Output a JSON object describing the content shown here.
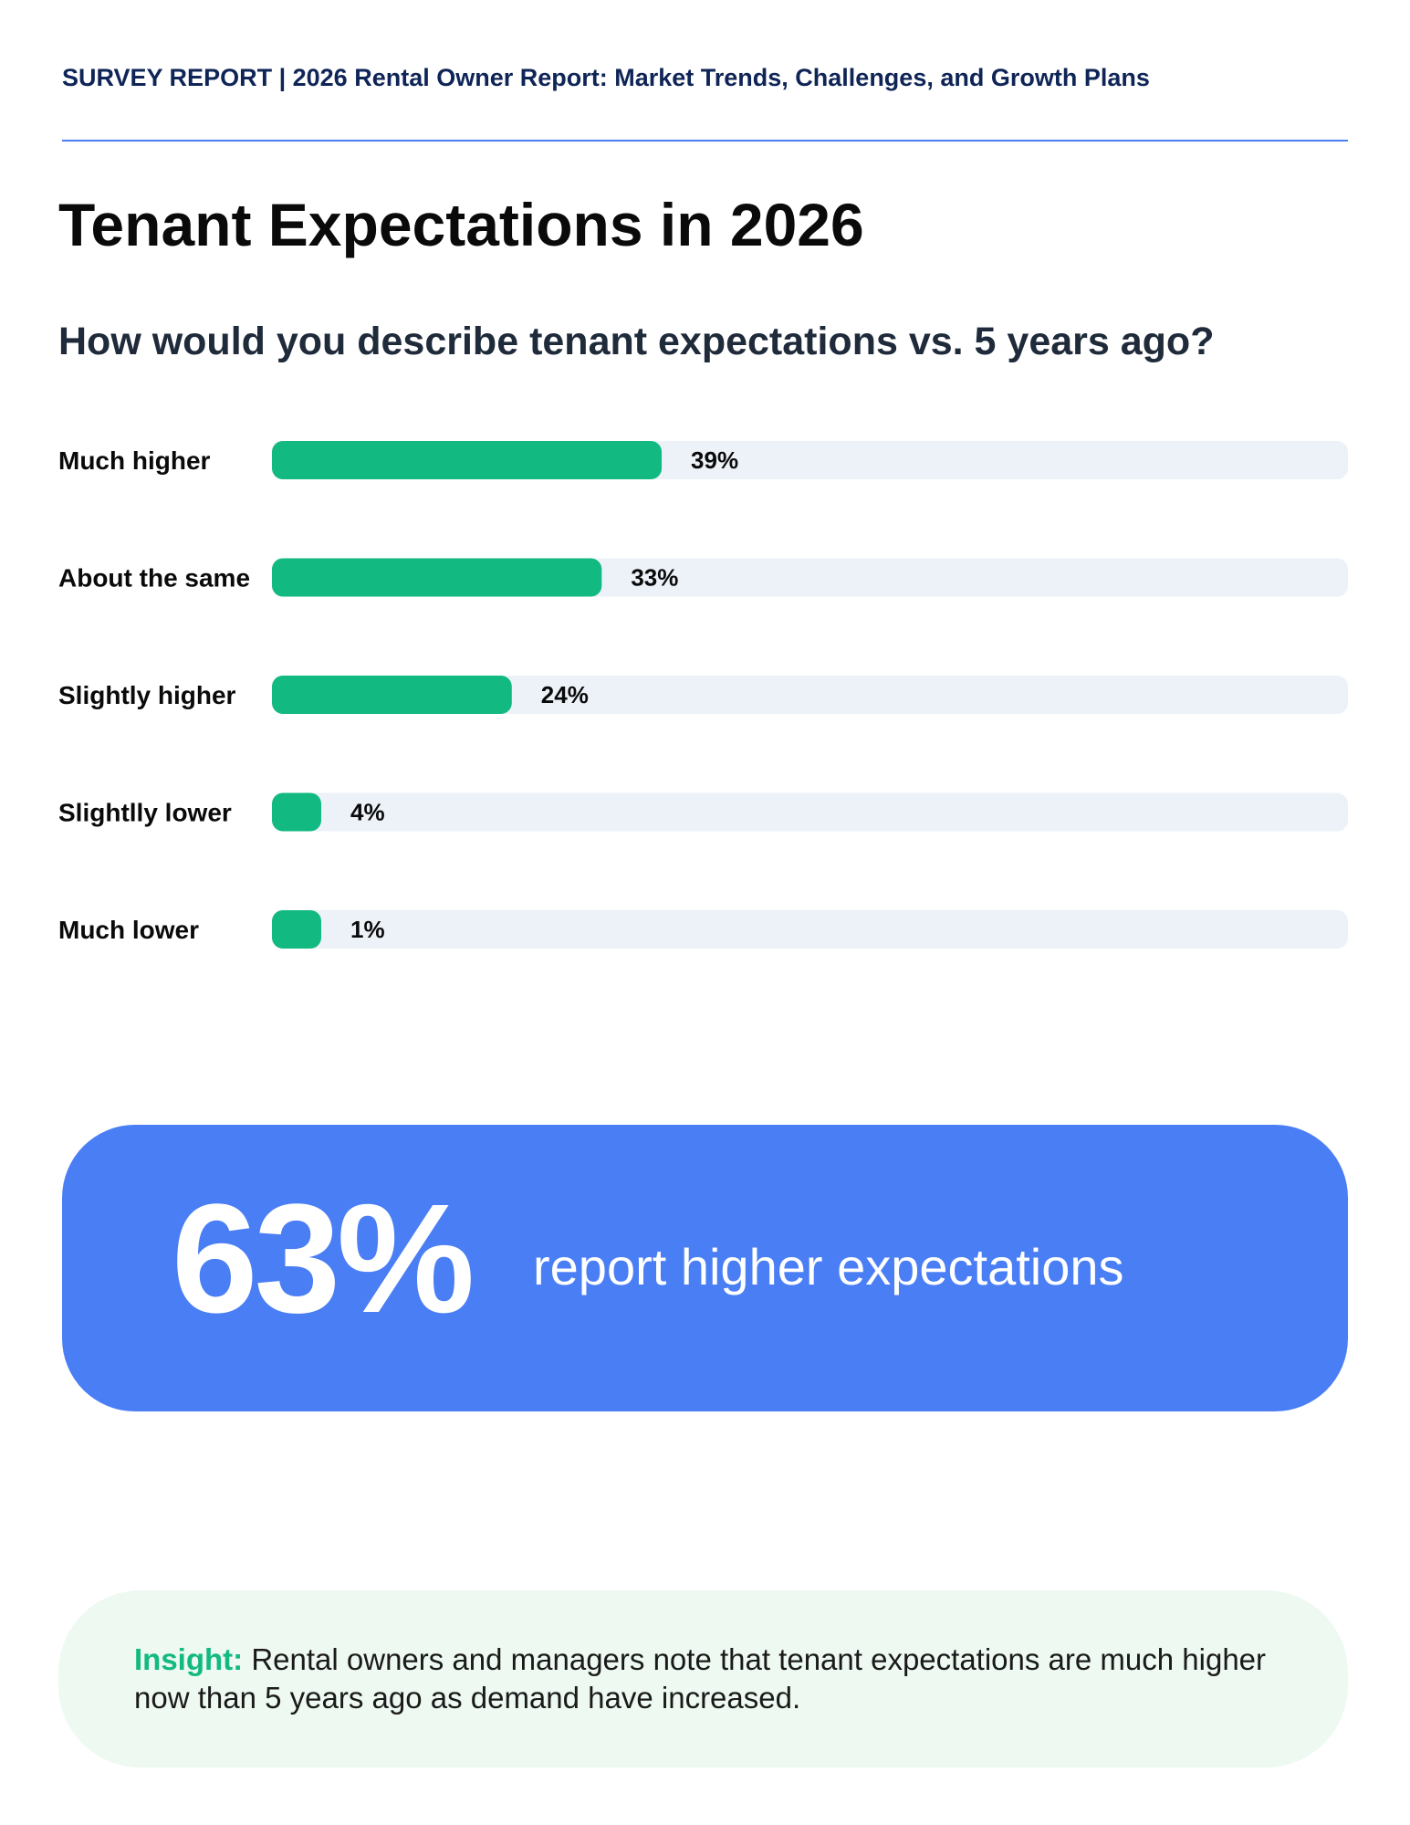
{
  "header": {
    "title": "SURVEY REPORT | 2026 Rental Owner Report: Market Trends, Challenges, and Growth Plans"
  },
  "page_title": "Tenant Expectations in 2026",
  "chart_data": {
    "type": "bar",
    "orientation": "horizontal",
    "title": "How would you describe tenant expectations vs. 5 years ago?",
    "categories": [
      "Much higher",
      "About the same",
      "Slightly higher",
      "Slightlly lower",
      "Much lower"
    ],
    "values": [
      39,
      33,
      24,
      4,
      1
    ],
    "value_labels": [
      "39%",
      "33%",
      "24%",
      "4%",
      "1%"
    ],
    "unit": "%",
    "xlim": [
      0,
      100
    ],
    "grid": false,
    "legend": "none",
    "colors": {
      "bar": "#12b981",
      "track": "#edf2f9"
    }
  },
  "stat": {
    "value": "63%",
    "text": "report higher expectations"
  },
  "insight": {
    "label": "Insight:",
    "text": " Rental owners and managers note that tenant expectations are much higher now than 5 years ago as demand have increased."
  },
  "colors": {
    "accent_blue": "#4a7ef5",
    "header_navy": "#0f2557",
    "bar_green": "#12b981",
    "insight_bg": "#edf9f1"
  }
}
